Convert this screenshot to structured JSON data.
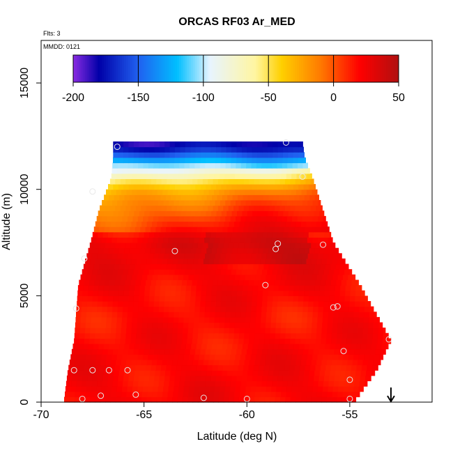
{
  "chart_data": {
    "type": "heatmap",
    "title": "ORCAS RF03 Ar_MED",
    "flights_label": "Flts: 3",
    "date_label": "MMDD: 0121",
    "xlabel": "Latitude (deg N)",
    "ylabel": "Altitude (m)",
    "xlim": [
      -70,
      -51
    ],
    "ylim": [
      0,
      17000
    ],
    "x_ticks": [
      -70,
      -65,
      -60,
      -55
    ],
    "x_tick_labels": [
      "-70",
      "-65",
      "-60",
      "-55"
    ],
    "y_ticks": [
      0,
      5000,
      10000,
      15000
    ],
    "y_tick_labels": [
      "0",
      "5000",
      "10000",
      "15000"
    ],
    "colorbar": {
      "range": [
        -200,
        50
      ],
      "ticks": [
        -200,
        -150,
        -100,
        -50,
        0,
        50
      ],
      "tick_labels": [
        "-200",
        "-150",
        "-100",
        "-50",
        "0",
        "50"
      ],
      "colors": [
        "#8a2be2",
        "#0000a8",
        "#2060f0",
        "#00bfff",
        "#e8f4ff",
        "#fff5a0",
        "#ffd000",
        "#ff7a00",
        "#ff0000",
        "#b01010"
      ],
      "color_stops": [
        -200,
        -180,
        -150,
        -120,
        -95,
        -60,
        -40,
        -10,
        20,
        50
      ]
    },
    "data_extent": {
      "altitude_top_m": [
        0,
        1500,
        2900,
        5500,
        7500,
        9000,
        10500,
        11500,
        12200
      ],
      "south_edge_lat": [
        -68.9,
        -68.7,
        -68.4,
        -68.2,
        -67.6,
        -67.2,
        -66.6,
        -66.5,
        -66.5
      ],
      "north_edge_lat": [
        -54.8,
        -53.7,
        -53.0,
        -54.5,
        -55.8,
        -56.3,
        -56.8,
        -57.2,
        -57.3
      ]
    },
    "value_profile": {
      "altitudes_m": [
        0,
        2000,
        4000,
        6000,
        7500,
        8500,
        9500,
        10000,
        10500,
        11000,
        11500,
        12000
      ],
      "values": [
        22,
        20,
        18,
        22,
        28,
        10,
        -10,
        -25,
        -55,
        -95,
        -140,
        -180
      ]
    },
    "flight_points": [
      {
        "lat": -66.3,
        "alt": 12000
      },
      {
        "lat": -58.1,
        "alt": 12200
      },
      {
        "lat": -57.3,
        "alt": 10600
      },
      {
        "lat": -67.5,
        "alt": 9900
      },
      {
        "lat": -63.5,
        "alt": 7100
      },
      {
        "lat": -58.6,
        "alt": 7200
      },
      {
        "lat": -58.5,
        "alt": 7450
      },
      {
        "lat": -56.3,
        "alt": 7400
      },
      {
        "lat": -67.9,
        "alt": 6750
      },
      {
        "lat": -59.1,
        "alt": 5500
      },
      {
        "lat": -68.3,
        "alt": 4400
      },
      {
        "lat": -55.8,
        "alt": 4450
      },
      {
        "lat": -55.6,
        "alt": 4500
      },
      {
        "lat": -53.1,
        "alt": 2950
      },
      {
        "lat": -55.3,
        "alt": 2400
      },
      {
        "lat": -68.4,
        "alt": 1500
      },
      {
        "lat": -67.5,
        "alt": 1500
      },
      {
        "lat": -66.7,
        "alt": 1500
      },
      {
        "lat": -65.8,
        "alt": 1500
      },
      {
        "lat": -55.0,
        "alt": 1050
      },
      {
        "lat": -67.1,
        "alt": 300
      },
      {
        "lat": -65.4,
        "alt": 350
      },
      {
        "lat": -68.0,
        "alt": 150
      },
      {
        "lat": -62.1,
        "alt": 200
      },
      {
        "lat": -60.0,
        "alt": 150
      },
      {
        "lat": -55.0,
        "alt": 150
      }
    ],
    "arrow_marker_lat": -53.0
  }
}
